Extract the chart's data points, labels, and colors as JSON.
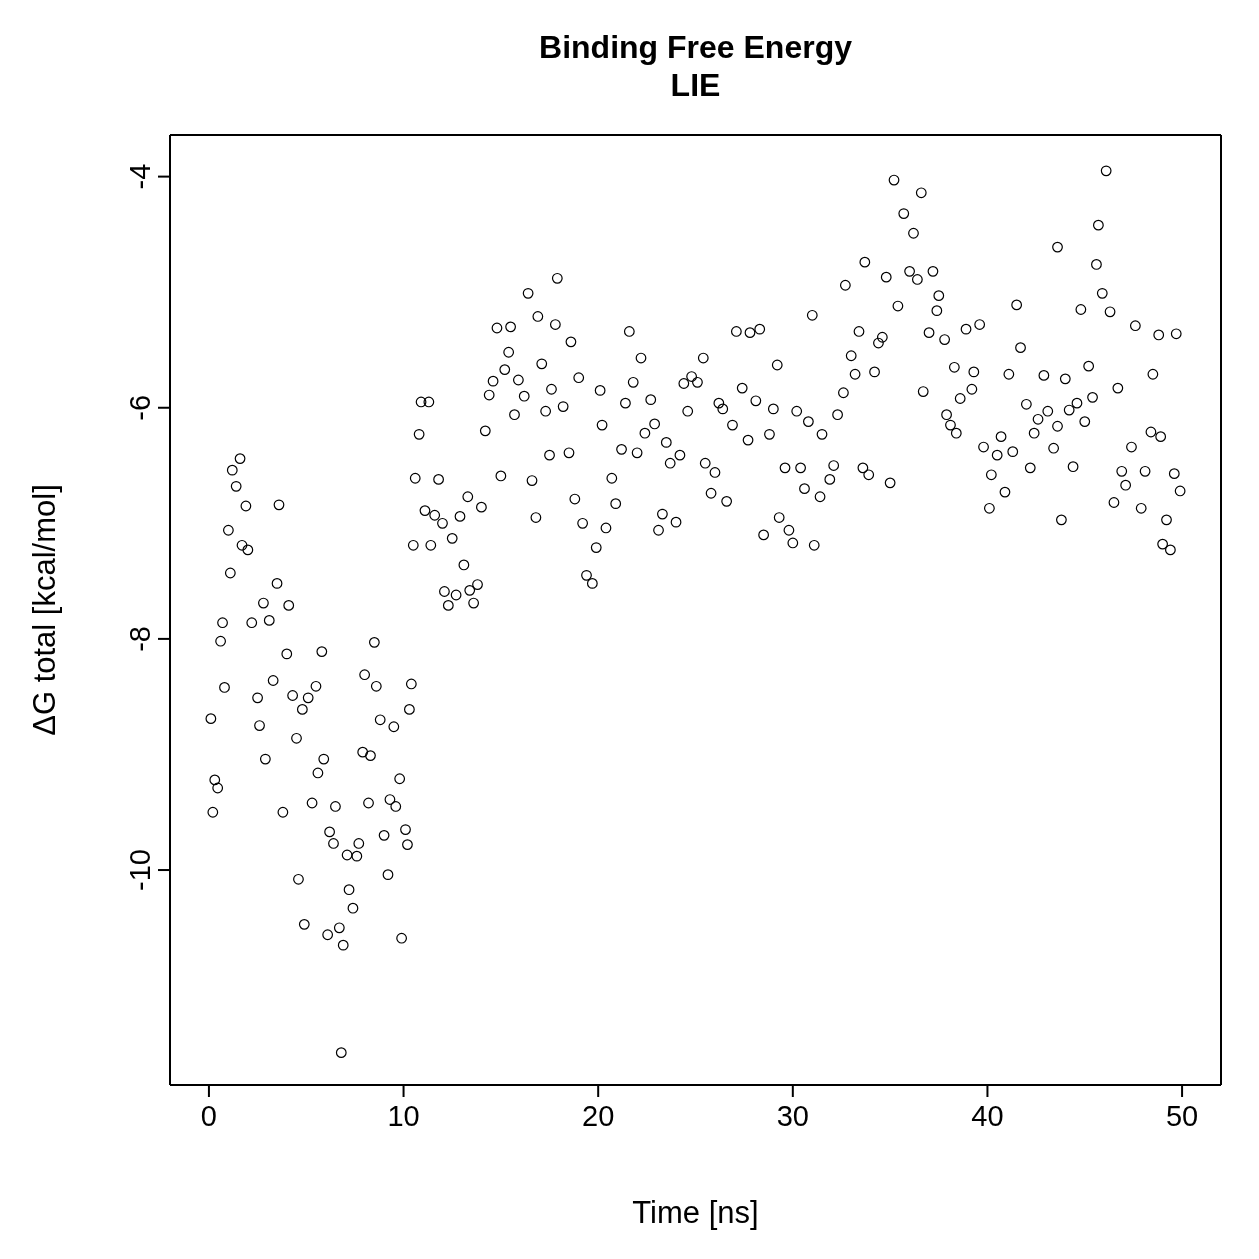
{
  "chart_data": {
    "type": "scatter",
    "title": "Binding Free Energy",
    "subtitle": "LIE",
    "xlabel": "Time [ns]",
    "ylabel": "ΔG total [kcal/mol]",
    "xlim": [
      -2,
      52
    ],
    "xticks": [
      0,
      10,
      20,
      30,
      40,
      50
    ],
    "ylim": [
      -11.86,
      -3.64
    ],
    "yticks": [
      -4,
      -6,
      -8,
      -10
    ],
    "marker": "circle",
    "series": [
      {
        "color": "#000000",
        "x": [
          0.1,
          0.2,
          0.3,
          0.45,
          0.6,
          0.7,
          0.8,
          1.0,
          1.1,
          1.2,
          1.4,
          1.6,
          1.7,
          1.9,
          2.0,
          2.2,
          2.5,
          2.6,
          2.8,
          2.9,
          3.1,
          3.3,
          3.5,
          3.6,
          3.8,
          4.0,
          4.1,
          4.3,
          4.5,
          4.6,
          4.8,
          4.9,
          5.1,
          5.3,
          5.5,
          5.6,
          5.8,
          5.9,
          6.1,
          6.2,
          6.4,
          6.5,
          6.7,
          6.8,
          6.9,
          7.1,
          7.2,
          7.4,
          7.6,
          7.7,
          7.9,
          8.0,
          8.2,
          8.3,
          8.5,
          8.6,
          8.8,
          9.0,
          9.2,
          9.3,
          9.5,
          9.6,
          9.8,
          9.9,
          10.1,
          10.2,
          10.3,
          10.4,
          10.5,
          10.6,
          10.8,
          10.9,
          11.1,
          11.3,
          11.4,
          11.6,
          11.8,
          12.0,
          12.1,
          12.3,
          12.5,
          12.7,
          12.9,
          13.1,
          13.3,
          13.4,
          13.6,
          13.8,
          14.0,
          14.2,
          14.4,
          14.6,
          14.8,
          15.0,
          15.2,
          15.4,
          15.5,
          15.7,
          15.9,
          16.2,
          16.4,
          16.6,
          16.8,
          16.9,
          17.1,
          17.3,
          17.5,
          17.6,
          17.8,
          17.9,
          18.2,
          18.5,
          18.6,
          18.8,
          19.0,
          19.2,
          19.4,
          19.7,
          19.9,
          20.1,
          20.2,
          20.4,
          20.7,
          20.9,
          21.2,
          21.4,
          21.6,
          21.8,
          22.0,
          22.2,
          22.4,
          22.7,
          22.9,
          23.1,
          23.3,
          23.5,
          23.7,
          24.0,
          24.2,
          24.4,
          24.6,
          24.8,
          25.1,
          25.4,
          25.5,
          25.8,
          26.0,
          26.2,
          26.4,
          26.6,
          26.9,
          27.1,
          27.4,
          27.7,
          27.8,
          28.1,
          28.3,
          28.5,
          28.8,
          29.0,
          29.2,
          29.3,
          29.6,
          29.8,
          30.0,
          30.2,
          30.4,
          30.6,
          30.8,
          31.0,
          31.1,
          31.4,
          31.5,
          31.9,
          32.1,
          32.3,
          32.6,
          32.7,
          33.0,
          33.2,
          33.4,
          33.6,
          33.7,
          33.9,
          34.2,
          34.4,
          34.6,
          34.8,
          35.0,
          35.2,
          35.4,
          35.7,
          36.0,
          36.2,
          36.4,
          36.6,
          36.7,
          37.0,
          37.2,
          37.4,
          37.5,
          37.8,
          37.9,
          38.1,
          38.3,
          38.4,
          38.6,
          38.9,
          39.2,
          39.3,
          39.6,
          39.8,
          40.1,
          40.2,
          40.5,
          40.7,
          40.9,
          41.1,
          41.3,
          41.5,
          41.7,
          42.0,
          42.2,
          42.4,
          42.6,
          42.9,
          43.1,
          43.4,
          43.6,
          43.6,
          43.8,
          44.0,
          44.2,
          44.4,
          44.6,
          44.8,
          45.0,
          45.2,
          45.4,
          45.6,
          45.7,
          45.9,
          46.1,
          46.3,
          46.5,
          46.7,
          46.9,
          47.1,
          47.4,
          47.6,
          47.9,
          48.1,
          48.4,
          48.5,
          48.8,
          48.9,
          49.0,
          49.2,
          49.4,
          49.6,
          49.7,
          49.9
        ],
        "values": [
          -8.69,
          -9.5,
          -9.22,
          -9.29,
          -8.02,
          -7.86,
          -8.42,
          -7.06,
          -7.43,
          -6.54,
          -6.68,
          -6.44,
          -7.19,
          -6.85,
          -7.23,
          -7.86,
          -8.51,
          -8.75,
          -7.69,
          -9.04,
          -7.84,
          -8.36,
          -7.52,
          -6.84,
          -9.5,
          -8.13,
          -7.71,
          -8.49,
          -8.86,
          -10.08,
          -8.61,
          -10.47,
          -8.51,
          -9.42,
          -8.41,
          -9.16,
          -8.11,
          -9.04,
          -10.56,
          -9.67,
          -9.77,
          -9.45,
          -10.5,
          -11.58,
          -10.65,
          -9.87,
          -10.17,
          -10.33,
          -9.88,
          -9.77,
          -8.98,
          -8.31,
          -9.42,
          -9.01,
          -8.03,
          -8.41,
          -8.7,
          -9.7,
          -10.04,
          -9.39,
          -8.76,
          -9.45,
          -9.21,
          -10.59,
          -9.65,
          -9.78,
          -8.61,
          -8.39,
          -7.19,
          -6.61,
          -6.23,
          -5.95,
          -6.89,
          -5.95,
          -7.19,
          -6.93,
          -6.62,
          -7.0,
          -7.59,
          -7.71,
          -7.13,
          -7.62,
          -6.94,
          -7.36,
          -6.77,
          -7.58,
          -7.69,
          -7.53,
          -6.86,
          -6.2,
          -5.89,
          -5.77,
          -5.31,
          -6.59,
          -5.67,
          -5.52,
          -5.3,
          -6.06,
          -5.76,
          -5.9,
          -5.01,
          -6.63,
          -6.95,
          -5.21,
          -5.62,
          -6.03,
          -6.41,
          -5.84,
          -5.28,
          -4.88,
          -5.99,
          -6.39,
          -5.43,
          -6.79,
          -5.74,
          -7.0,
          -7.45,
          -7.52,
          -7.21,
          -5.85,
          -6.15,
          -7.04,
          -6.61,
          -6.83,
          -6.36,
          -5.96,
          -5.34,
          -5.78,
          -6.39,
          -5.57,
          -6.22,
          -5.93,
          -6.14,
          -7.06,
          -6.92,
          -6.3,
          -6.48,
          -6.99,
          -6.41,
          -5.79,
          -6.03,
          -5.73,
          -5.78,
          -5.57,
          -6.48,
          -6.74,
          -6.56,
          -5.96,
          -6.01,
          -6.81,
          -6.15,
          -5.34,
          -5.83,
          -6.28,
          -5.35,
          -5.94,
          -5.32,
          -7.1,
          -6.23,
          -6.01,
          -5.63,
          -6.95,
          -6.52,
          -7.06,
          -7.17,
          -6.03,
          -6.52,
          -6.7,
          -6.12,
          -5.2,
          -7.19,
          -6.77,
          -6.23,
          -6.62,
          -6.5,
          -6.06,
          -5.87,
          -4.94,
          -5.55,
          -5.71,
          -5.34,
          -6.52,
          -4.74,
          -6.58,
          -5.69,
          -5.44,
          -5.39,
          -4.87,
          -6.65,
          -4.03,
          -5.12,
          -4.32,
          -4.82,
          -4.49,
          -4.89,
          -4.14,
          -5.86,
          -5.35,
          -4.82,
          -5.16,
          -5.03,
          -5.41,
          -6.06,
          -6.15,
          -5.65,
          -6.22,
          -5.92,
          -5.32,
          -5.84,
          -5.69,
          -5.28,
          -6.34,
          -6.87,
          -6.58,
          -6.41,
          -6.25,
          -6.73,
          -5.71,
          -6.38,
          -5.11,
          -5.48,
          -5.97,
          -6.52,
          -6.22,
          -6.1,
          -5.72,
          -6.03,
          -6.35,
          -6.16,
          -4.61,
          -6.97,
          -5.75,
          -6.02,
          -6.51,
          -5.96,
          -5.15,
          -6.12,
          -5.64,
          -5.91,
          -4.76,
          -4.42,
          -5.01,
          -3.95,
          -5.17,
          -6.82,
          -5.83,
          -6.55,
          -6.67,
          -6.34,
          -5.29,
          -6.87,
          -6.55,
          -6.21,
          -5.71,
          -5.37,
          -6.25,
          -7.18,
          -6.97,
          -7.23,
          -6.57,
          -5.36,
          -6.72
        ]
      }
    ]
  }
}
